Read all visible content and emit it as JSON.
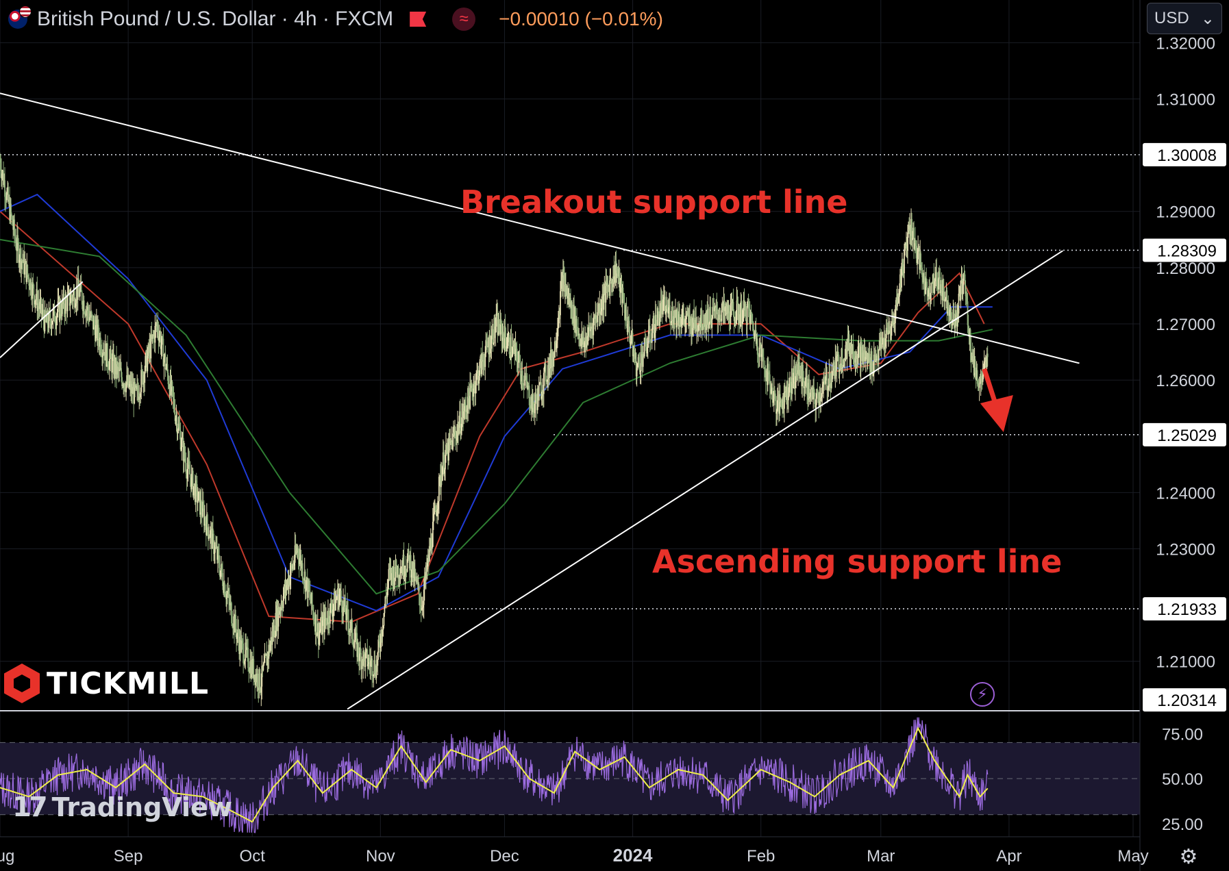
{
  "header": {
    "symbol_title": "British Pound / U.S. Dollar · 4h · FXCM",
    "flag_icon": "gbp-usd-flag-icon",
    "change": "−0.00010 (−0.01%)",
    "change_color": "#ff9d5c"
  },
  "currency_selector": {
    "value": "USD"
  },
  "branding": {
    "broker": "TICKMILL",
    "platform": "TradingView"
  },
  "annotations": {
    "breakout": "Breakout support line",
    "ascending": "Ascending support line",
    "color": "#e8322a"
  },
  "chart_data": [
    {
      "type": "line",
      "title": "British Pound / U.S. Dollar · 4h · FXCM",
      "x_axis": {
        "ticks": [
          "Aug",
          "Sep",
          "Oct",
          "Nov",
          "Dec",
          "2024",
          "Feb",
          "Mar",
          "Apr",
          "May"
        ],
        "range": [
          "2023-08-01",
          "2024-05-01"
        ]
      },
      "y_axis": {
        "ticks": [
          "1.32000",
          "1.31000",
          "1.29000",
          "1.28000",
          "1.27000",
          "1.26000",
          "1.24000",
          "1.23000",
          "1.21000"
        ],
        "range": [
          1.2012,
          1.3215
        ],
        "highlighted_levels": [
          "1.30008",
          "1.28309",
          "1.25029",
          "1.21933",
          "1.20314"
        ]
      },
      "horizontal_levels": [
        1.30008,
        1.28309,
        1.25029,
        1.21933
      ],
      "price_anchors": [
        {
          "x": "2023-08-01",
          "y": 1.299
        },
        {
          "x": "2023-08-05",
          "y": 1.284
        },
        {
          "x": "2023-08-12",
          "y": 1.27
        },
        {
          "x": "2023-08-20",
          "y": 1.276
        },
        {
          "x": "2023-08-27",
          "y": 1.264
        },
        {
          "x": "2023-09-03",
          "y": 1.257
        },
        {
          "x": "2023-09-08",
          "y": 1.27
        },
        {
          "x": "2023-09-15",
          "y": 1.245
        },
        {
          "x": "2023-09-22",
          "y": 1.23
        },
        {
          "x": "2023-09-28",
          "y": 1.213
        },
        {
          "x": "2023-10-03",
          "y": 1.206
        },
        {
          "x": "2023-10-07",
          "y": 1.218
        },
        {
          "x": "2023-10-12",
          "y": 1.23
        },
        {
          "x": "2023-10-17",
          "y": 1.215
        },
        {
          "x": "2023-10-22",
          "y": 1.222
        },
        {
          "x": "2023-10-27",
          "y": 1.211
        },
        {
          "x": "2023-10-31",
          "y": 1.209
        },
        {
          "x": "2023-11-03",
          "y": 1.225
        },
        {
          "x": "2023-11-08",
          "y": 1.228
        },
        {
          "x": "2023-11-11",
          "y": 1.22
        },
        {
          "x": "2023-11-16",
          "y": 1.245
        },
        {
          "x": "2023-11-20",
          "y": 1.252
        },
        {
          "x": "2023-11-24",
          "y": 1.26
        },
        {
          "x": "2023-11-29",
          "y": 1.27
        },
        {
          "x": "2023-12-04",
          "y": 1.264
        },
        {
          "x": "2023-12-08",
          "y": 1.255
        },
        {
          "x": "2023-12-13",
          "y": 1.265
        },
        {
          "x": "2023-12-15",
          "y": 1.278
        },
        {
          "x": "2023-12-20",
          "y": 1.266
        },
        {
          "x": "2023-12-28",
          "y": 1.28
        },
        {
          "x": "2024-01-02",
          "y": 1.262
        },
        {
          "x": "2024-01-08",
          "y": 1.273
        },
        {
          "x": "2024-01-15",
          "y": 1.27
        },
        {
          "x": "2024-01-22",
          "y": 1.272
        },
        {
          "x": "2024-01-29",
          "y": 1.272
        },
        {
          "x": "2024-02-05",
          "y": 1.255
        },
        {
          "x": "2024-02-10",
          "y": 1.262
        },
        {
          "x": "2024-02-14",
          "y": 1.256
        },
        {
          "x": "2024-02-22",
          "y": 1.266
        },
        {
          "x": "2024-02-28",
          "y": 1.263
        },
        {
          "x": "2024-03-04",
          "y": 1.27
        },
        {
          "x": "2024-03-08",
          "y": 1.288
        },
        {
          "x": "2024-03-12",
          "y": 1.276
        },
        {
          "x": "2024-03-15",
          "y": 1.278
        },
        {
          "x": "2024-03-19",
          "y": 1.27
        },
        {
          "x": "2024-03-21",
          "y": 1.279
        },
        {
          "x": "2024-03-23",
          "y": 1.264
        },
        {
          "x": "2024-03-25",
          "y": 1.259
        },
        {
          "x": "2024-03-27",
          "y": 1.264
        }
      ],
      "moving_averages": [
        {
          "color": "#c0392b",
          "points": [
            {
              "x": "2023-08-01",
              "y": 1.29
            },
            {
              "x": "2023-09-01",
              "y": 1.27
            },
            {
              "x": "2023-09-20",
              "y": 1.245
            },
            {
              "x": "2023-10-05",
              "y": 1.218
            },
            {
              "x": "2023-10-25",
              "y": 1.217
            },
            {
              "x": "2023-11-10",
              "y": 1.222
            },
            {
              "x": "2023-11-25",
              "y": 1.25
            },
            {
              "x": "2023-12-05",
              "y": 1.262
            },
            {
              "x": "2023-12-20",
              "y": 1.265
            },
            {
              "x": "2024-01-10",
              "y": 1.27
            },
            {
              "x": "2024-02-01",
              "y": 1.27
            },
            {
              "x": "2024-02-15",
              "y": 1.261
            },
            {
              "x": "2024-03-01",
              "y": 1.263
            },
            {
              "x": "2024-03-10",
              "y": 1.272
            },
            {
              "x": "2024-03-20",
              "y": 1.279
            },
            {
              "x": "2024-03-26",
              "y": 1.27
            }
          ]
        },
        {
          "color": "#1f3bd6",
          "points": [
            {
              "x": "2023-08-01",
              "y": 1.29
            },
            {
              "x": "2023-08-10",
              "y": 1.293
            },
            {
              "x": "2023-09-01",
              "y": 1.278
            },
            {
              "x": "2023-09-20",
              "y": 1.26
            },
            {
              "x": "2023-10-10",
              "y": 1.225
            },
            {
              "x": "2023-10-31",
              "y": 1.219
            },
            {
              "x": "2023-11-15",
              "y": 1.225
            },
            {
              "x": "2023-12-01",
              "y": 1.25
            },
            {
              "x": "2023-12-15",
              "y": 1.262
            },
            {
              "x": "2024-01-10",
              "y": 1.268
            },
            {
              "x": "2024-02-01",
              "y": 1.268
            },
            {
              "x": "2024-02-20",
              "y": 1.262
            },
            {
              "x": "2024-03-08",
              "y": 1.265
            },
            {
              "x": "2024-03-18",
              "y": 1.273
            },
            {
              "x": "2024-03-28",
              "y": 1.273
            }
          ]
        },
        {
          "color": "#2e7d32",
          "points": [
            {
              "x": "2023-08-01",
              "y": 1.285
            },
            {
              "x": "2023-08-25",
              "y": 1.282
            },
            {
              "x": "2023-09-15",
              "y": 1.268
            },
            {
              "x": "2023-10-10",
              "y": 1.24
            },
            {
              "x": "2023-10-31",
              "y": 1.222
            },
            {
              "x": "2023-11-15",
              "y": 1.226
            },
            {
              "x": "2023-12-01",
              "y": 1.238
            },
            {
              "x": "2023-12-20",
              "y": 1.256
            },
            {
              "x": "2024-01-10",
              "y": 1.263
            },
            {
              "x": "2024-02-01",
              "y": 1.268
            },
            {
              "x": "2024-02-25",
              "y": 1.267
            },
            {
              "x": "2024-03-15",
              "y": 1.267
            },
            {
              "x": "2024-03-28",
              "y": 1.269
            }
          ]
        }
      ],
      "trendlines": [
        {
          "name": "Breakout support line",
          "from": {
            "x": "2023-08-01",
            "y": 1.311
          },
          "to": {
            "x": "2024-04-18",
            "y": 1.263
          }
        },
        {
          "name": "Ascending support line",
          "from": {
            "x": "2023-10-24",
            "y": 1.2015
          },
          "to": {
            "x": "2024-04-14",
            "y": 1.283
          }
        },
        {
          "from": {
            "x": "2023-08-01",
            "y": 1.264
          },
          "to": {
            "x": "2023-08-21",
            "y": 1.2775
          }
        }
      ],
      "arrow": {
        "color": "#e8322a",
        "from": {
          "x": "2024-03-26",
          "y": 1.262
        },
        "to": {
          "x": "2024-03-30",
          "y": 1.251
        }
      }
    },
    {
      "type": "line",
      "title": "",
      "y_axis": {
        "ticks": [
          "75.00",
          "50.00",
          "25.00"
        ],
        "range": [
          20,
          85
        ]
      },
      "bands": [
        30,
        50,
        70
      ],
      "rsi_anchors": [
        {
          "x": "2023-08-01",
          "y": 45
        },
        {
          "x": "2023-08-08",
          "y": 40
        },
        {
          "x": "2023-08-15",
          "y": 52
        },
        {
          "x": "2023-08-22",
          "y": 55
        },
        {
          "x": "2023-08-29",
          "y": 45
        },
        {
          "x": "2023-09-05",
          "y": 58
        },
        {
          "x": "2023-09-12",
          "y": 42
        },
        {
          "x": "2023-09-19",
          "y": 40
        },
        {
          "x": "2023-09-26",
          "y": 32
        },
        {
          "x": "2023-10-01",
          "y": 26
        },
        {
          "x": "2023-10-06",
          "y": 45
        },
        {
          "x": "2023-10-12",
          "y": 60
        },
        {
          "x": "2023-10-18",
          "y": 42
        },
        {
          "x": "2023-10-25",
          "y": 55
        },
        {
          "x": "2023-10-31",
          "y": 45
        },
        {
          "x": "2023-11-06",
          "y": 68
        },
        {
          "x": "2023-11-12",
          "y": 48
        },
        {
          "x": "2023-11-18",
          "y": 66
        },
        {
          "x": "2023-11-25",
          "y": 60
        },
        {
          "x": "2023-12-01",
          "y": 68
        },
        {
          "x": "2023-12-07",
          "y": 50
        },
        {
          "x": "2023-12-13",
          "y": 42
        },
        {
          "x": "2023-12-18",
          "y": 65
        },
        {
          "x": "2023-12-24",
          "y": 55
        },
        {
          "x": "2023-12-30",
          "y": 62
        },
        {
          "x": "2024-01-05",
          "y": 45
        },
        {
          "x": "2024-01-12",
          "y": 55
        },
        {
          "x": "2024-01-18",
          "y": 52
        },
        {
          "x": "2024-01-24",
          "y": 38
        },
        {
          "x": "2024-02-01",
          "y": 55
        },
        {
          "x": "2024-02-08",
          "y": 48
        },
        {
          "x": "2024-02-14",
          "y": 40
        },
        {
          "x": "2024-02-20",
          "y": 52
        },
        {
          "x": "2024-02-27",
          "y": 60
        },
        {
          "x": "2024-03-04",
          "y": 45
        },
        {
          "x": "2024-03-10",
          "y": 78
        },
        {
          "x": "2024-03-14",
          "y": 60
        },
        {
          "x": "2024-03-20",
          "y": 40
        },
        {
          "x": "2024-03-22",
          "y": 52
        },
        {
          "x": "2024-03-25",
          "y": 40
        },
        {
          "x": "2024-03-27",
          "y": 45
        }
      ],
      "colors": {
        "rsi": "#9c6ce0",
        "signal": "#f0f04a",
        "band": "#1c1830"
      }
    }
  ]
}
